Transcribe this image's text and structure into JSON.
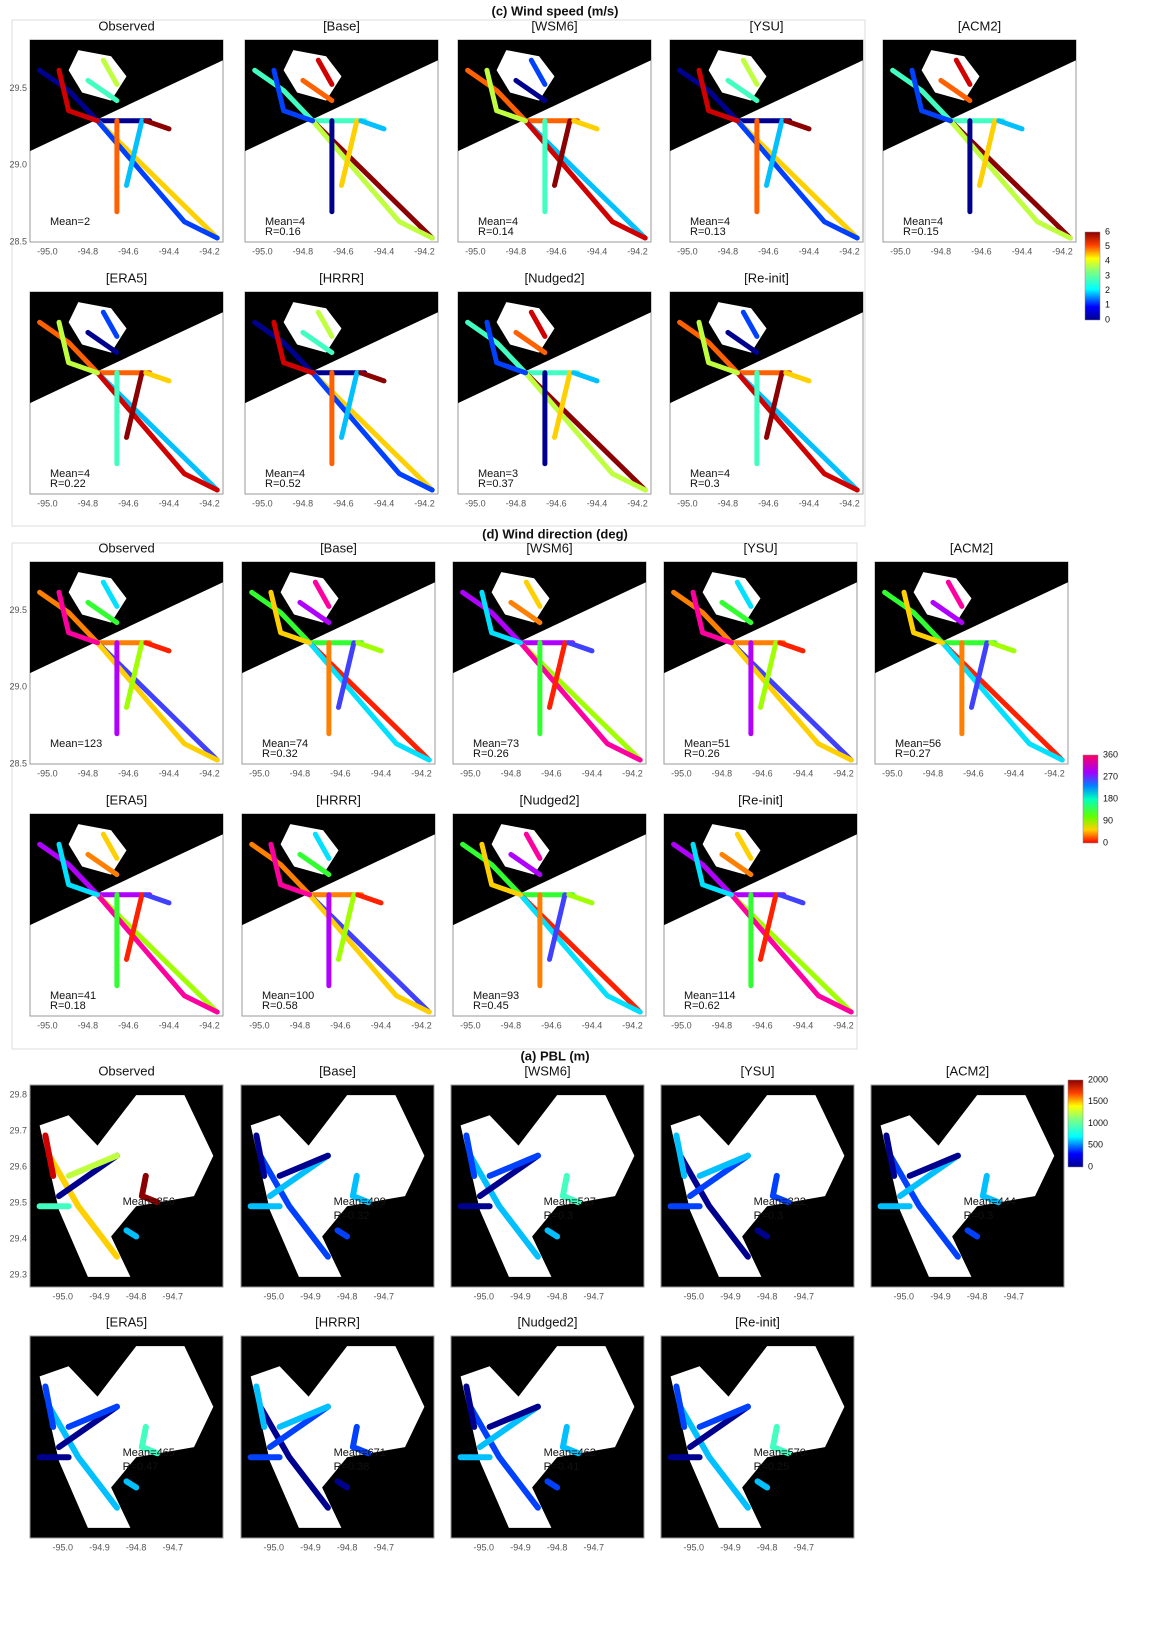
{
  "sections": [
    {
      "title": "(c) Wind speed (m/s)",
      "panels": [
        {
          "name": "Observed",
          "stats": [
            "Mean=2"
          ]
        },
        {
          "name": "[Base]",
          "stats": [
            "Mean=4",
            "R=0.16"
          ]
        },
        {
          "name": "[WSM6]",
          "stats": [
            "Mean=4",
            "R=0.14"
          ]
        },
        {
          "name": "[YSU]",
          "stats": [
            "Mean=4",
            "R=0.13"
          ]
        },
        {
          "name": "[ACM2]",
          "stats": [
            "Mean=4",
            "R=0.15"
          ]
        },
        {
          "name": "[ERA5]",
          "stats": [
            "Mean=4",
            "R=0.22"
          ]
        },
        {
          "name": "[HRRR]",
          "stats": [
            "Mean=4",
            "R=0.52"
          ]
        },
        {
          "name": "[Nudged2]",
          "stats": [
            "Mean=3",
            "R=0.37"
          ]
        },
        {
          "name": "[Re-init]",
          "stats": [
            "Mean=4",
            "R=0.3"
          ]
        }
      ],
      "xticks": [
        "-95.0",
        "-94.8",
        "-94.6",
        "-94.4",
        "-94.2"
      ],
      "yticks": [
        "29.5",
        "29.0",
        "28.5"
      ],
      "colorbar": [
        "6",
        "5",
        "4",
        "3",
        "2",
        "1",
        "0"
      ]
    },
    {
      "title": "(d) Wind direction (deg)",
      "panels": [
        {
          "name": "Observed",
          "stats": [
            "Mean=123"
          ]
        },
        {
          "name": "[Base]",
          "stats": [
            "Mean=74",
            "R=0.32"
          ]
        },
        {
          "name": "[WSM6]",
          "stats": [
            "Mean=73",
            "R=0.26"
          ]
        },
        {
          "name": "[YSU]",
          "stats": [
            "Mean=51",
            "R=0.26"
          ]
        },
        {
          "name": "[ACM2]",
          "stats": [
            "Mean=56",
            "R=0.27"
          ]
        },
        {
          "name": "[ERA5]",
          "stats": [
            "Mean=41",
            "R=0.18"
          ]
        },
        {
          "name": "[HRRR]",
          "stats": [
            "Mean=100",
            "R=0.58"
          ]
        },
        {
          "name": "[Nudged2]",
          "stats": [
            "Mean=93",
            "R=0.45"
          ]
        },
        {
          "name": "[Re-init]",
          "stats": [
            "Mean=114",
            "R=0.62"
          ]
        }
      ],
      "xticks": [
        "-95.0",
        "-94.8",
        "-94.6",
        "-94.4",
        "-94.2"
      ],
      "yticks": [
        "29.5",
        "29.0",
        "28.5"
      ],
      "colorbar": [
        "360",
        "270",
        "180",
        "90",
        "0"
      ]
    },
    {
      "title": "(a) PBL (m)",
      "panels": [
        {
          "name": "Observed",
          "stats": [
            "Mean=856"
          ]
        },
        {
          "name": "[Base]",
          "stats": [
            "Mean=499",
            "R=0.32"
          ]
        },
        {
          "name": "[WSM6]",
          "stats": [
            "Mean=527",
            "R=0.3"
          ]
        },
        {
          "name": "[YSU]",
          "stats": [
            "Mean=322",
            "R=0.3"
          ]
        },
        {
          "name": "[ACM2]",
          "stats": [
            "Mean=444",
            "R=0.3"
          ]
        },
        {
          "name": "[ERA5]",
          "stats": [
            "Mean=465",
            "R=0.47"
          ]
        },
        {
          "name": "[HRRR]",
          "stats": [
            "Mean=671",
            "R=0.38"
          ]
        },
        {
          "name": "[Nudged2]",
          "stats": [
            "Mean=462",
            "R=0.41"
          ]
        },
        {
          "name": "[Re-init]",
          "stats": [
            "Mean=570",
            "R=0.25"
          ]
        }
      ],
      "xticks": [
        "-95.0",
        "-94.9",
        "-94.8",
        "-94.7"
      ],
      "yticks": [
        "29.8",
        "29.7",
        "29.6",
        "29.5",
        "29.4",
        "29.3"
      ],
      "colorbar": [
        "2000",
        "1500",
        "1000",
        "500",
        "0"
      ]
    }
  ]
}
